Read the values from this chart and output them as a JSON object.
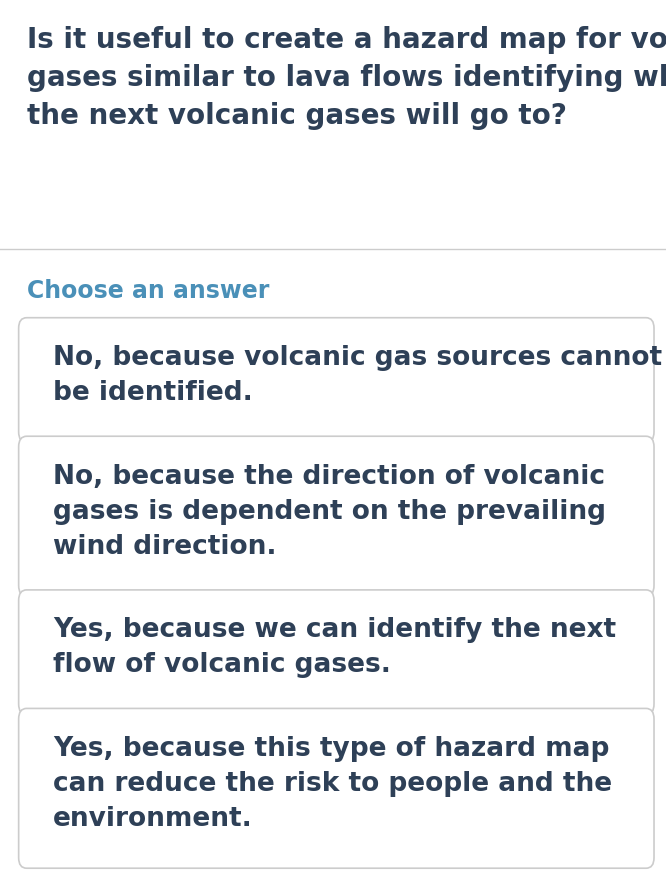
{
  "background_color": "#ffffff",
  "question": "Is it useful to create a hazard map for volcanic\ngases similar to lava flows identifying where\nthe next volcanic gases will go to?",
  "question_color": "#2e4057",
  "question_fontsize": 20,
  "choose_label": "Choose an answer",
  "choose_color": "#4a90b8",
  "choose_fontsize": 17,
  "answers": [
    "No, because volcanic gas sources cannot\nbe identified.",
    "No, because the direction of volcanic\ngases is dependent on the prevailing\nwind direction.",
    "Yes, because we can identify the next\nflow of volcanic gases.",
    "Yes, because this type of hazard map\ncan reduce the risk to people and the\nenvironment."
  ],
  "answer_color": "#2e4057",
  "answer_fontsize": 19,
  "box_face_color": "#ffffff",
  "box_edge_color": "#cccccc",
  "separator_color": "#cccccc"
}
